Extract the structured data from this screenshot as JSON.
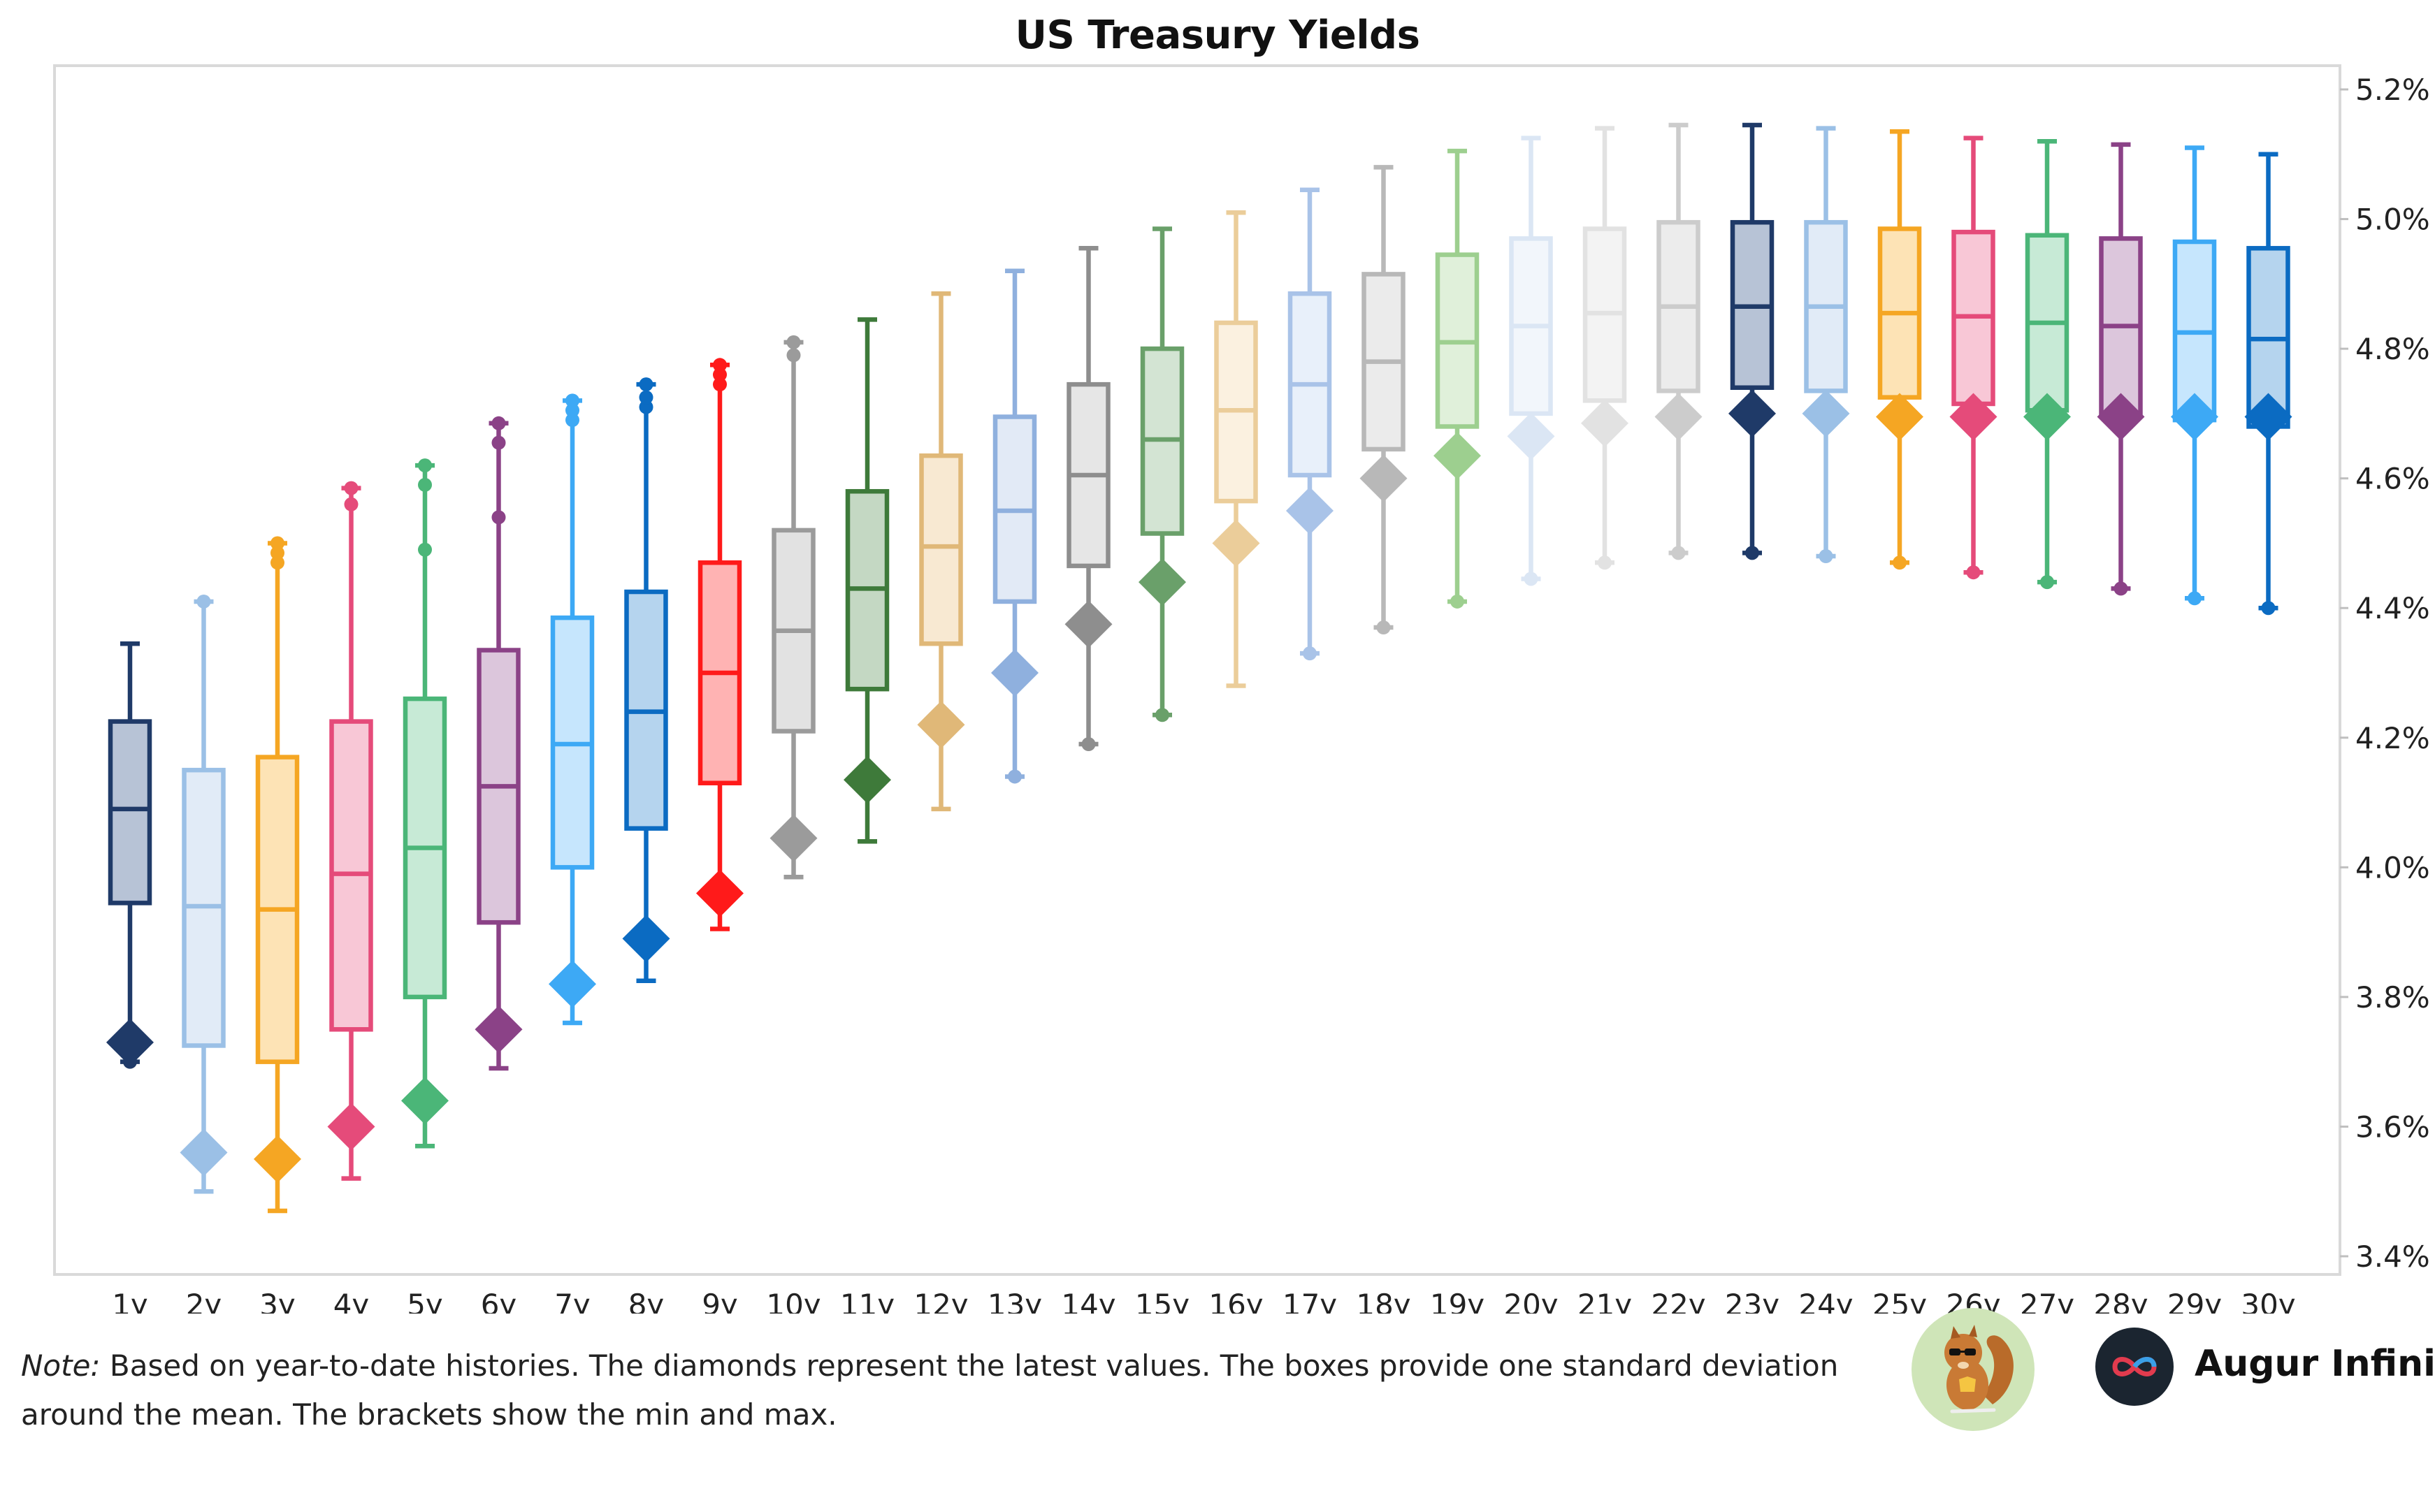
{
  "chart_data": {
    "type": "boxplot",
    "title": "US Treasury Yields",
    "xlabel": "",
    "ylabel": "",
    "ylim": [
      3.38,
      5.24
    ],
    "yticks": [
      3.4,
      3.6,
      3.8,
      4.0,
      4.2,
      4.4,
      4.6,
      4.8,
      5.0,
      5.2
    ],
    "ytick_labels": [
      "3.4%",
      "3.6%",
      "3.8%",
      "4.0%",
      "4.2%",
      "4.4%",
      "4.6%",
      "4.8%",
      "5.0%",
      "5.2%"
    ],
    "categories": [
      "1y",
      "2y",
      "3y",
      "4y",
      "5y",
      "6y",
      "7y",
      "8y",
      "9y",
      "10y",
      "11y",
      "12y",
      "13y",
      "14y",
      "15y",
      "16y",
      "17y",
      "18y",
      "19y",
      "20y",
      "21y",
      "22y",
      "23y",
      "24y",
      "25y",
      "26y",
      "27y",
      "28y",
      "29y",
      "30y"
    ],
    "series": [
      {
        "name": "1y",
        "min": 3.7,
        "max": 4.345,
        "box_low": 3.945,
        "box_high": 4.225,
        "mean": 4.09,
        "latest": 3.73,
        "outliers": [
          3.7
        ],
        "color": "#1f3a68",
        "box_fill": "#b7c3d6"
      },
      {
        "name": "2y",
        "min": 3.5,
        "max": 4.41,
        "box_low": 3.725,
        "box_high": 4.15,
        "mean": 3.94,
        "latest": 3.56,
        "outliers": [
          4.41
        ],
        "color": "#9bc0e6",
        "box_fill": "#e1ebf7"
      },
      {
        "name": "3y",
        "min": 3.47,
        "max": 4.5,
        "box_low": 3.7,
        "box_high": 4.17,
        "mean": 3.935,
        "latest": 3.55,
        "outliers": [
          4.47,
          4.485,
          4.5
        ],
        "color": "#f5a623",
        "box_fill": "#fde3b5"
      },
      {
        "name": "4y",
        "min": 3.52,
        "max": 4.585,
        "box_low": 3.75,
        "box_high": 4.225,
        "mean": 3.99,
        "latest": 3.6,
        "outliers": [
          4.56,
          4.585
        ],
        "color": "#e54b7a",
        "box_fill": "#f8c7d6"
      },
      {
        "name": "5y",
        "min": 3.57,
        "max": 4.62,
        "box_low": 3.8,
        "box_high": 4.26,
        "mean": 4.03,
        "latest": 3.64,
        "outliers": [
          4.49,
          4.59,
          4.62
        ],
        "color": "#4bb678",
        "box_fill": "#c7ead6"
      },
      {
        "name": "6y",
        "min": 3.69,
        "max": 4.685,
        "box_low": 3.915,
        "box_high": 4.335,
        "mean": 4.125,
        "latest": 3.75,
        "outliers": [
          4.54,
          4.655,
          4.685
        ],
        "color": "#8b4287",
        "box_fill": "#dcc6dc"
      },
      {
        "name": "7y",
        "min": 3.76,
        "max": 4.72,
        "box_low": 4.0,
        "box_high": 4.385,
        "mean": 4.19,
        "latest": 3.82,
        "outliers": [
          4.69,
          4.705,
          4.72
        ],
        "color": "#3da9f5",
        "box_fill": "#c6e6fd"
      },
      {
        "name": "8y",
        "min": 3.825,
        "max": 4.745,
        "box_low": 4.06,
        "box_high": 4.425,
        "mean": 4.24,
        "latest": 3.89,
        "outliers": [
          4.71,
          4.725,
          4.745
        ],
        "color": "#0b6bc2",
        "box_fill": "#b5d4ee"
      },
      {
        "name": "9y",
        "min": 3.905,
        "max": 4.775,
        "box_low": 4.13,
        "box_high": 4.47,
        "mean": 4.3,
        "latest": 3.96,
        "outliers": [
          4.745,
          4.76,
          4.775
        ],
        "color": "#ff1a1a",
        "box_fill": "#ffb3b3"
      },
      {
        "name": "10y",
        "min": 3.985,
        "max": 4.81,
        "box_low": 4.21,
        "box_high": 4.52,
        "mean": 4.365,
        "latest": 4.045,
        "outliers": [
          4.79,
          4.81
        ],
        "color": "#9b9b9b",
        "box_fill": "#e2e2e2"
      },
      {
        "name": "11y",
        "min": 4.04,
        "max": 4.845,
        "box_low": 4.275,
        "box_high": 4.58,
        "mean": 4.43,
        "latest": 4.135,
        "outliers": [],
        "color": "#3e7a3a",
        "box_fill": "#c4d8c3"
      },
      {
        "name": "12y",
        "min": 4.09,
        "max": 4.885,
        "box_low": 4.345,
        "box_high": 4.635,
        "mean": 4.495,
        "latest": 4.22,
        "outliers": [],
        "color": "#e0b878",
        "box_fill": "#f8e9d2"
      },
      {
        "name": "13y",
        "min": 4.14,
        "max": 4.92,
        "box_low": 4.41,
        "box_high": 4.695,
        "mean": 4.55,
        "latest": 4.3,
        "outliers": [
          4.14
        ],
        "color": "#8fb0de",
        "box_fill": "#e2eaf6"
      },
      {
        "name": "14y",
        "min": 4.19,
        "max": 4.955,
        "box_low": 4.465,
        "box_high": 4.745,
        "mean": 4.605,
        "latest": 4.375,
        "outliers": [
          4.19
        ],
        "color": "#8e8e8e",
        "box_fill": "#e6e6e6"
      },
      {
        "name": "15y",
        "min": 4.235,
        "max": 4.985,
        "box_low": 4.515,
        "box_high": 4.8,
        "mean": 4.66,
        "latest": 4.44,
        "outliers": [
          4.235
        ],
        "color": "#6aa06a",
        "box_fill": "#d3e4d3"
      },
      {
        "name": "16y",
        "min": 4.28,
        "max": 5.01,
        "box_low": 4.565,
        "box_high": 4.84,
        "mean": 4.705,
        "latest": 4.5,
        "outliers": [],
        "color": "#ebcd9a",
        "box_fill": "#fbf1e0"
      },
      {
        "name": "17y",
        "min": 4.33,
        "max": 5.045,
        "box_low": 4.605,
        "box_high": 4.885,
        "mean": 4.745,
        "latest": 4.55,
        "outliers": [
          4.33
        ],
        "color": "#a9c3e8",
        "box_fill": "#e8f0fa"
      },
      {
        "name": "18y",
        "min": 4.37,
        "max": 5.08,
        "box_low": 4.645,
        "box_high": 4.915,
        "mean": 4.78,
        "latest": 4.6,
        "outliers": [
          4.37
        ],
        "color": "#b8b8b8",
        "box_fill": "#ebebeb"
      },
      {
        "name": "19y",
        "min": 4.41,
        "max": 5.105,
        "box_low": 4.68,
        "box_high": 4.945,
        "mean": 4.81,
        "latest": 4.635,
        "outliers": [
          4.41
        ],
        "color": "#9dcf8f",
        "box_fill": "#e0f0da"
      },
      {
        "name": "20y",
        "min": 4.445,
        "max": 5.125,
        "box_low": 4.7,
        "box_high": 4.97,
        "mean": 4.835,
        "latest": 4.665,
        "outliers": [
          4.445
        ],
        "color": "#dbe6f4",
        "box_fill": "#f2f6fb"
      },
      {
        "name": "21y",
        "min": 4.47,
        "max": 5.14,
        "box_low": 4.72,
        "box_high": 4.985,
        "mean": 4.855,
        "latest": 4.685,
        "outliers": [
          4.47
        ],
        "color": "#e2e2e2",
        "box_fill": "#f3f3f3"
      },
      {
        "name": "22y",
        "min": 4.485,
        "max": 5.145,
        "box_low": 4.735,
        "box_high": 4.995,
        "mean": 4.865,
        "latest": 4.695,
        "outliers": [
          4.485
        ],
        "color": "#cccccc",
        "box_fill": "#ececec"
      },
      {
        "name": "23y",
        "min": 4.485,
        "max": 5.145,
        "box_low": 4.74,
        "box_high": 4.995,
        "mean": 4.865,
        "latest": 4.7,
        "outliers": [
          4.485
        ],
        "color": "#1f3a68",
        "box_fill": "#b7c3d6"
      },
      {
        "name": "24y",
        "min": 4.48,
        "max": 5.14,
        "box_low": 4.735,
        "box_high": 4.995,
        "mean": 4.865,
        "latest": 4.7,
        "outliers": [
          4.48
        ],
        "color": "#9bc0e6",
        "box_fill": "#e1ebf7"
      },
      {
        "name": "25y",
        "min": 4.47,
        "max": 5.135,
        "box_low": 4.725,
        "box_high": 4.985,
        "mean": 4.855,
        "latest": 4.695,
        "outliers": [
          4.47
        ],
        "color": "#f5a623",
        "box_fill": "#fde3b5"
      },
      {
        "name": "26y",
        "min": 4.455,
        "max": 5.125,
        "box_low": 4.715,
        "box_high": 4.98,
        "mean": 4.85,
        "latest": 4.695,
        "outliers": [
          4.455
        ],
        "color": "#e54b7a",
        "box_fill": "#f8c7d6"
      },
      {
        "name": "27y",
        "min": 4.44,
        "max": 5.12,
        "box_low": 4.705,
        "box_high": 4.975,
        "mean": 4.84,
        "latest": 4.695,
        "outliers": [
          4.44
        ],
        "color": "#4bb678",
        "box_fill": "#c7ead6"
      },
      {
        "name": "28y",
        "min": 4.43,
        "max": 5.115,
        "box_low": 4.7,
        "box_high": 4.97,
        "mean": 4.835,
        "latest": 4.695,
        "outliers": [
          4.43
        ],
        "color": "#8b4287",
        "box_fill": "#dcc6dc"
      },
      {
        "name": "29y",
        "min": 4.415,
        "max": 5.11,
        "box_low": 4.69,
        "box_high": 4.965,
        "mean": 4.825,
        "latest": 4.695,
        "outliers": [
          4.415
        ],
        "color": "#3da9f5",
        "box_fill": "#c6e6fd"
      },
      {
        "name": "30y",
        "min": 4.4,
        "max": 5.1,
        "box_low": 4.68,
        "box_high": 4.955,
        "mean": 4.815,
        "latest": 4.695,
        "outliers": [
          4.4
        ],
        "color": "#0b6bc2",
        "box_fill": "#b5d4ee"
      }
    ],
    "grid": false,
    "legend": "none"
  },
  "note": {
    "prefix": "Note:",
    "text": " Based on year-to-date histories. The diamonds represent the latest values. The boxes provide one standard deviation around the mean. The brackets show the min and max."
  },
  "brand": {
    "name": "Augur Infinity",
    "logo_icon": "infinity-icon",
    "mascot_icon": "squirrel-mascot-icon"
  }
}
